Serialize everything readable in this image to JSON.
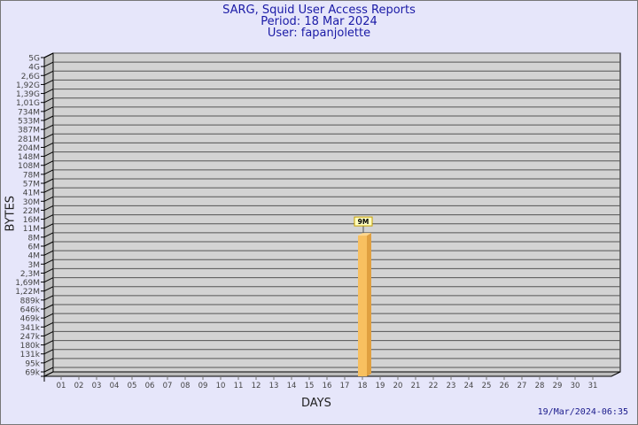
{
  "header": {
    "title": "SARG, Squid User Access Reports",
    "period": "Period: 18 Mar 2024",
    "user": "User: fapanjolette"
  },
  "footer": {
    "generated": "19/Mar/2024-06:35"
  },
  "colors": {
    "background": "#e6e6fa",
    "plot": "#d3d3d3",
    "bar": "#f8c060",
    "title": "#1a1aa6"
  },
  "chart_data": {
    "type": "bar",
    "title": "SARG, Squid User Access Reports",
    "xlabel": "DAYS",
    "ylabel": "BYTES",
    "y_scale": "log",
    "grid": true,
    "categories": [
      "01",
      "02",
      "03",
      "04",
      "05",
      "06",
      "07",
      "08",
      "09",
      "10",
      "11",
      "12",
      "13",
      "14",
      "15",
      "16",
      "17",
      "18",
      "19",
      "20",
      "21",
      "22",
      "23",
      "24",
      "25",
      "26",
      "27",
      "28",
      "29",
      "30",
      "31"
    ],
    "values": [
      null,
      null,
      null,
      null,
      null,
      null,
      null,
      null,
      null,
      null,
      null,
      null,
      null,
      null,
      null,
      null,
      null,
      9000000,
      null,
      null,
      null,
      null,
      null,
      null,
      null,
      null,
      null,
      null,
      null,
      null,
      null
    ],
    "data_labels": {
      "18": "9M"
    },
    "y_tick_labels": [
      "5G",
      "4G",
      "2,6G",
      "1,92G",
      "1,39G",
      "1,01G",
      "734M",
      "533M",
      "387M",
      "281M",
      "204M",
      "148M",
      "108M",
      "78M",
      "57M",
      "41M",
      "30M",
      "22M",
      "16M",
      "11M",
      "8M",
      "6M",
      "4M",
      "3M",
      "2,3M",
      "1,69M",
      "1,22M",
      "889k",
      "646k",
      "469k",
      "341k",
      "247k",
      "180k",
      "131k",
      "95k",
      "69k"
    ]
  }
}
